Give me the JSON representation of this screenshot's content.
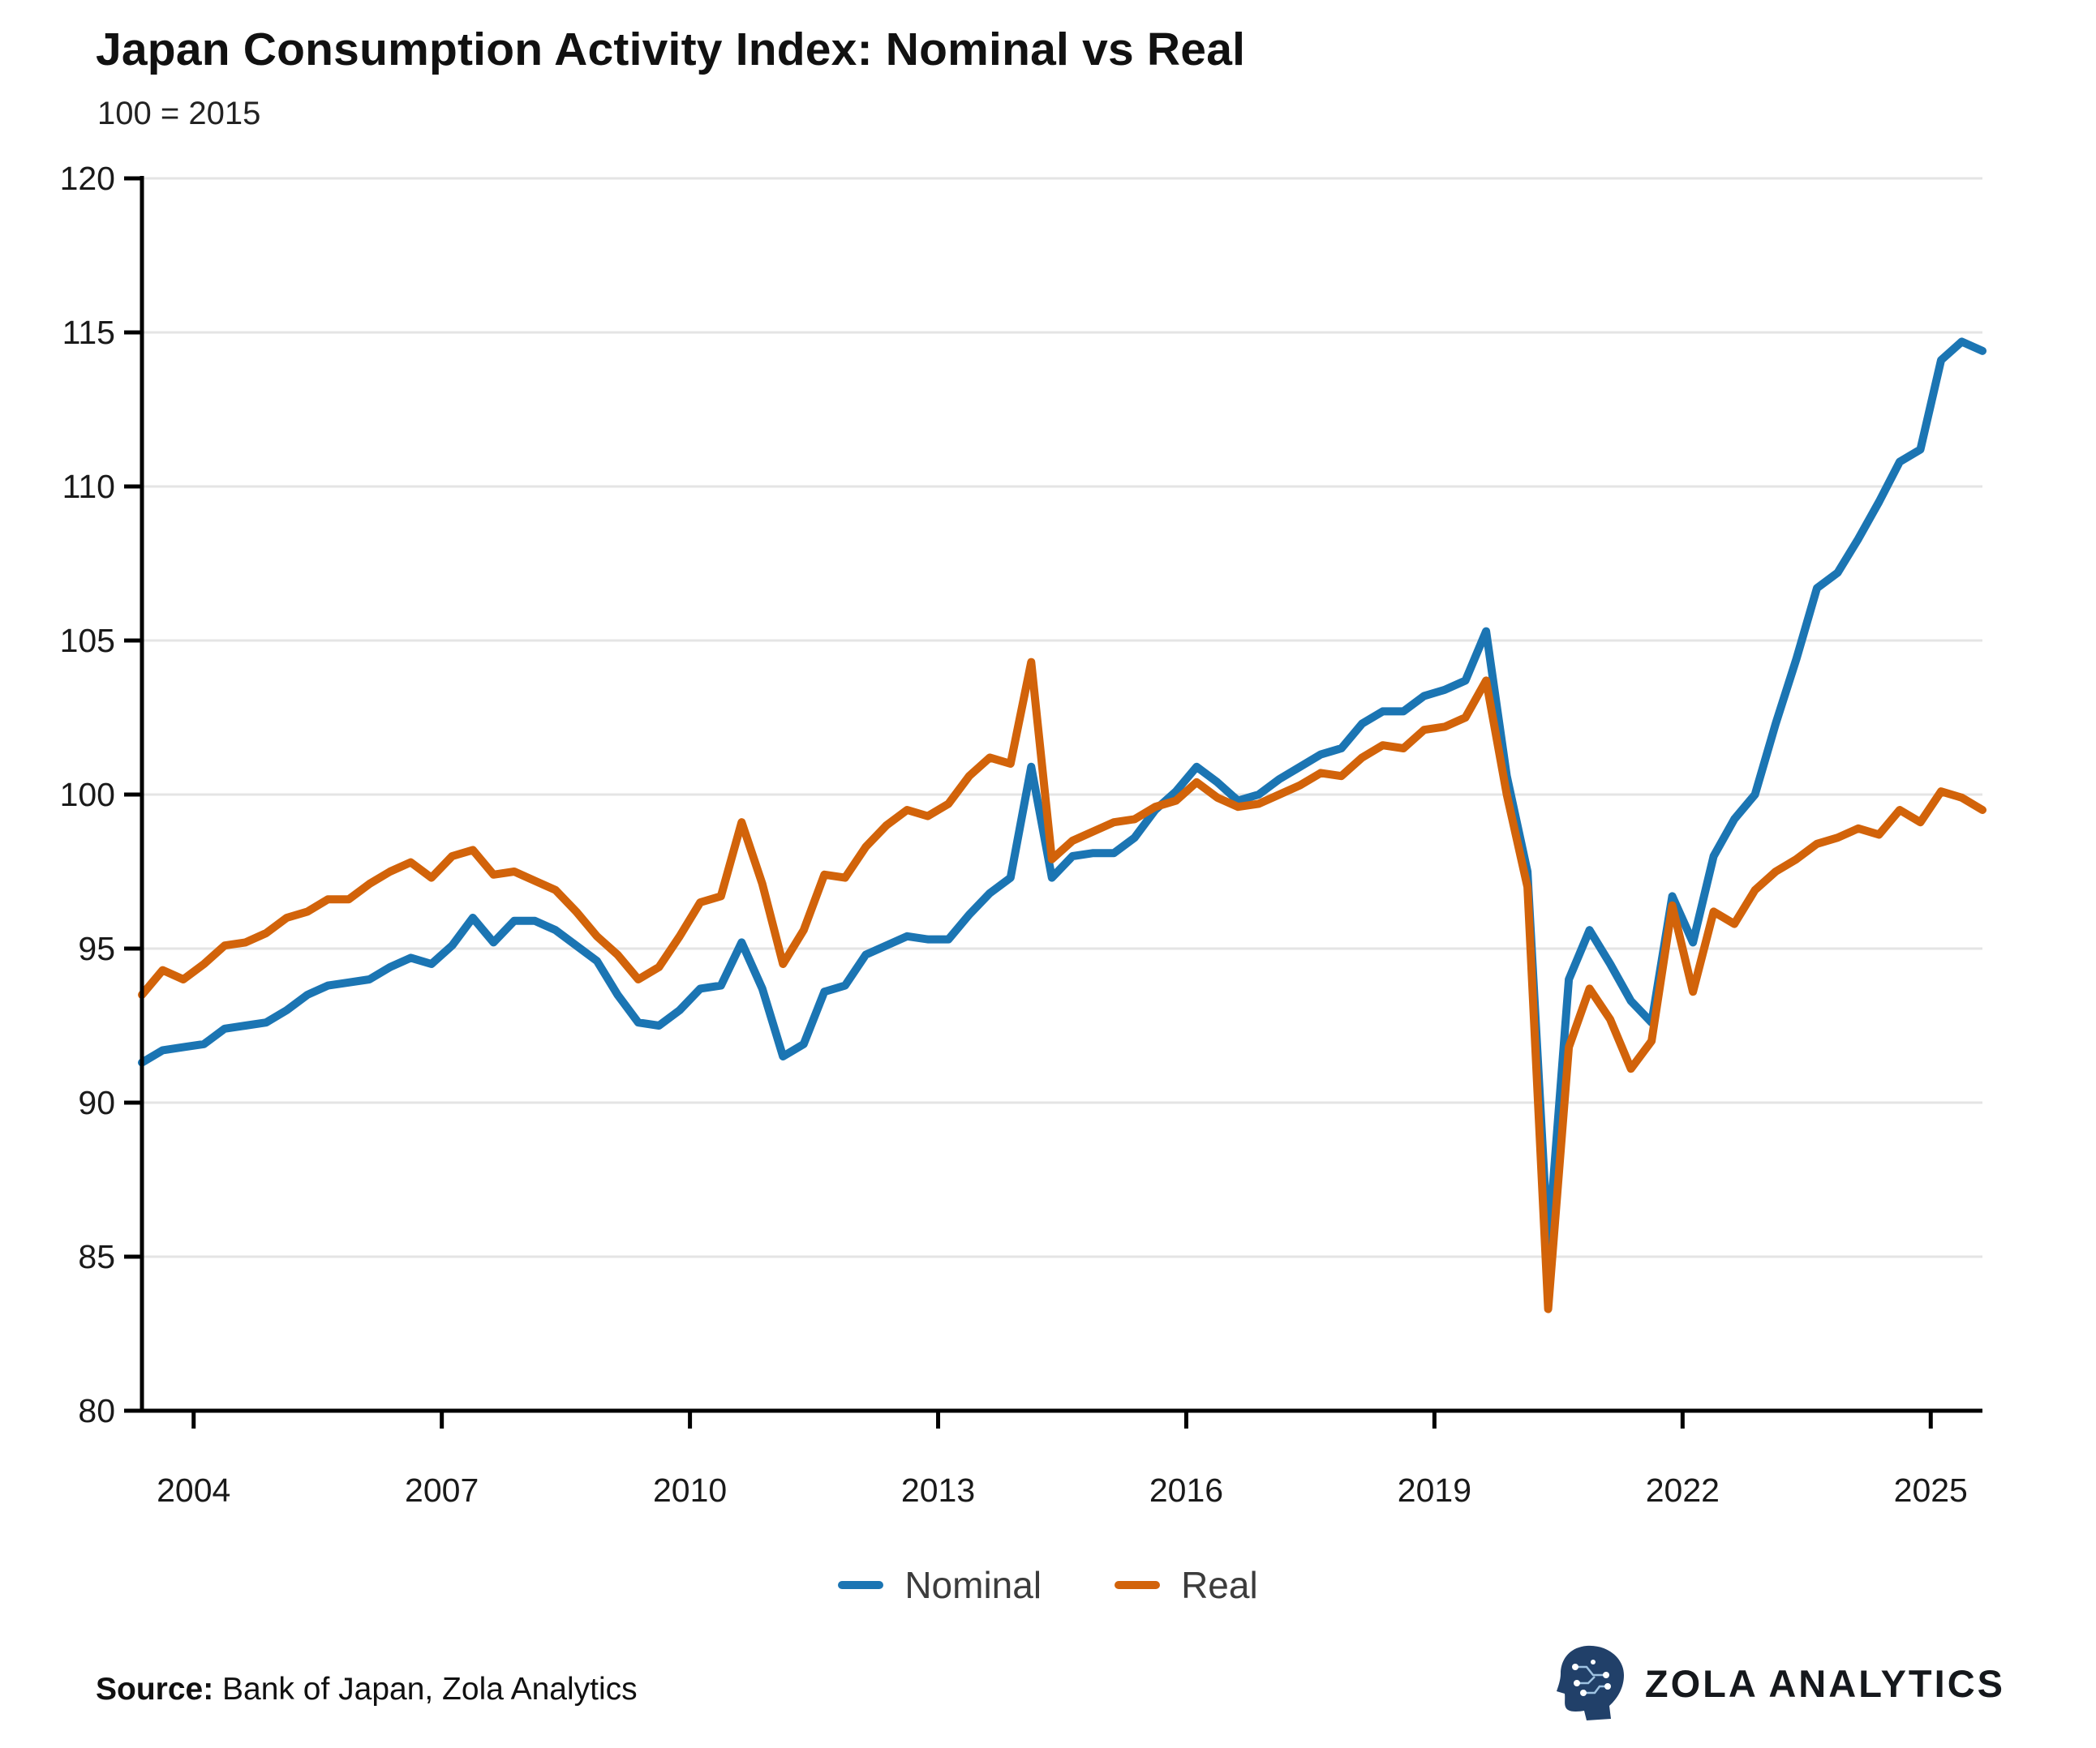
{
  "header": {
    "title": "Japan Consumption Activity Index: Nominal vs Real",
    "subtitle": "100 = 2015"
  },
  "legend": [
    {
      "label": "Nominal",
      "color": "#1b75b3"
    },
    {
      "label": "Real",
      "color": "#d2630a"
    }
  ],
  "footer": {
    "source_label": "Source:",
    "source_text": " Bank of Japan, Zola Analytics",
    "brand": "ZOLA  ANALYTICS",
    "brand_icon": "head-circuit-icon"
  },
  "chart_data": {
    "type": "line",
    "title": "Japan Consumption Activity Index: Nominal vs Real",
    "subtitle": "100 = 2015",
    "xlabel": "",
    "ylabel": "",
    "ylim": [
      80,
      120
    ],
    "yticks": [
      80,
      85,
      90,
      95,
      100,
      105,
      110,
      115,
      120
    ],
    "xticks": [
      2004,
      2007,
      2010,
      2013,
      2016,
      2019,
      2022,
      2025
    ],
    "grid": "horizontal",
    "legend_position": "bottom",
    "x_unit": "quarter",
    "x_labels": [
      "2003Q2",
      "2003Q3",
      "2003Q4",
      "2004Q1",
      "2004Q2",
      "2004Q3",
      "2004Q4",
      "2005Q1",
      "2005Q2",
      "2005Q3",
      "2005Q4",
      "2006Q1",
      "2006Q2",
      "2006Q3",
      "2006Q4",
      "2007Q1",
      "2007Q2",
      "2007Q3",
      "2007Q4",
      "2008Q1",
      "2008Q2",
      "2008Q3",
      "2008Q4",
      "2009Q1",
      "2009Q2",
      "2009Q3",
      "2009Q4",
      "2010Q1",
      "2010Q2",
      "2010Q3",
      "2010Q4",
      "2011Q1",
      "2011Q2",
      "2011Q3",
      "2011Q4",
      "2012Q1",
      "2012Q2",
      "2012Q3",
      "2012Q4",
      "2013Q1",
      "2013Q2",
      "2013Q3",
      "2013Q4",
      "2014Q1",
      "2014Q2",
      "2014Q3",
      "2014Q4",
      "2015Q1",
      "2015Q2",
      "2015Q3",
      "2015Q4",
      "2016Q1",
      "2016Q2",
      "2016Q3",
      "2016Q4",
      "2017Q1",
      "2017Q2",
      "2017Q3",
      "2017Q4",
      "2018Q1",
      "2018Q2",
      "2018Q3",
      "2018Q4",
      "2019Q1",
      "2019Q2",
      "2019Q3",
      "2019Q4",
      "2020Q1",
      "2020Q2",
      "2020Q3",
      "2020Q4",
      "2021Q1",
      "2021Q2",
      "2021Q3",
      "2021Q4",
      "2022Q1",
      "2022Q2",
      "2022Q3",
      "2022Q4",
      "2023Q1",
      "2023Q2",
      "2023Q3",
      "2023Q4",
      "2024Q1",
      "2024Q2",
      "2024Q3",
      "2024Q4",
      "2025Q1",
      "2025Q2",
      "2025Q3"
    ],
    "series": [
      {
        "name": "Nominal",
        "color": "#1b75b3",
        "values": [
          91.3,
          91.7,
          91.8,
          91.9,
          92.4,
          92.5,
          92.6,
          93.0,
          93.5,
          93.8,
          93.9,
          94.0,
          94.4,
          94.7,
          94.5,
          95.1,
          96.0,
          95.2,
          95.9,
          95.9,
          95.6,
          95.1,
          94.6,
          93.5,
          92.6,
          92.5,
          93.0,
          93.7,
          93.8,
          95.2,
          93.7,
          91.5,
          91.9,
          93.6,
          93.8,
          94.8,
          95.1,
          95.4,
          95.3,
          95.3,
          96.1,
          96.8,
          97.3,
          100.9,
          97.3,
          98.0,
          98.1,
          98.1,
          98.6,
          99.5,
          100.1,
          100.9,
          100.4,
          99.8,
          100.0,
          100.5,
          100.9,
          101.3,
          101.5,
          102.3,
          102.7,
          102.7,
          103.2,
          103.4,
          103.7,
          105.3,
          100.6,
          97.5,
          85.3,
          94.0,
          95.6,
          94.5,
          93.3,
          92.6,
          96.7,
          95.2,
          98.0,
          99.2,
          100.0,
          102.3,
          104.4,
          106.7,
          107.2,
          108.3,
          109.5,
          110.8,
          111.2,
          114.1,
          114.7,
          114.4
        ]
      },
      {
        "name": "Real",
        "color": "#d2630a",
        "values": [
          93.5,
          94.3,
          94.0,
          94.5,
          95.1,
          95.2,
          95.5,
          96.0,
          96.2,
          96.6,
          96.6,
          97.1,
          97.5,
          97.8,
          97.3,
          98.0,
          98.2,
          97.4,
          97.5,
          97.2,
          96.9,
          96.2,
          95.4,
          94.8,
          94.0,
          94.4,
          95.4,
          96.5,
          96.7,
          99.1,
          97.1,
          94.5,
          95.6,
          97.4,
          97.3,
          98.3,
          99.0,
          99.5,
          99.3,
          99.7,
          100.6,
          101.2,
          101.0,
          104.3,
          97.9,
          98.5,
          98.8,
          99.1,
          99.2,
          99.6,
          99.8,
          100.4,
          99.9,
          99.6,
          99.7,
          100.0,
          100.3,
          100.7,
          100.6,
          101.2,
          101.6,
          101.5,
          102.1,
          102.2,
          102.5,
          103.7,
          100.0,
          97.0,
          83.3,
          91.8,
          93.7,
          92.7,
          91.1,
          92.0,
          96.4,
          93.6,
          96.2,
          95.8,
          96.9,
          97.5,
          97.9,
          98.4,
          98.6,
          98.9,
          98.7,
          99.5,
          99.1,
          100.1,
          99.9,
          99.5
        ]
      }
    ]
  }
}
